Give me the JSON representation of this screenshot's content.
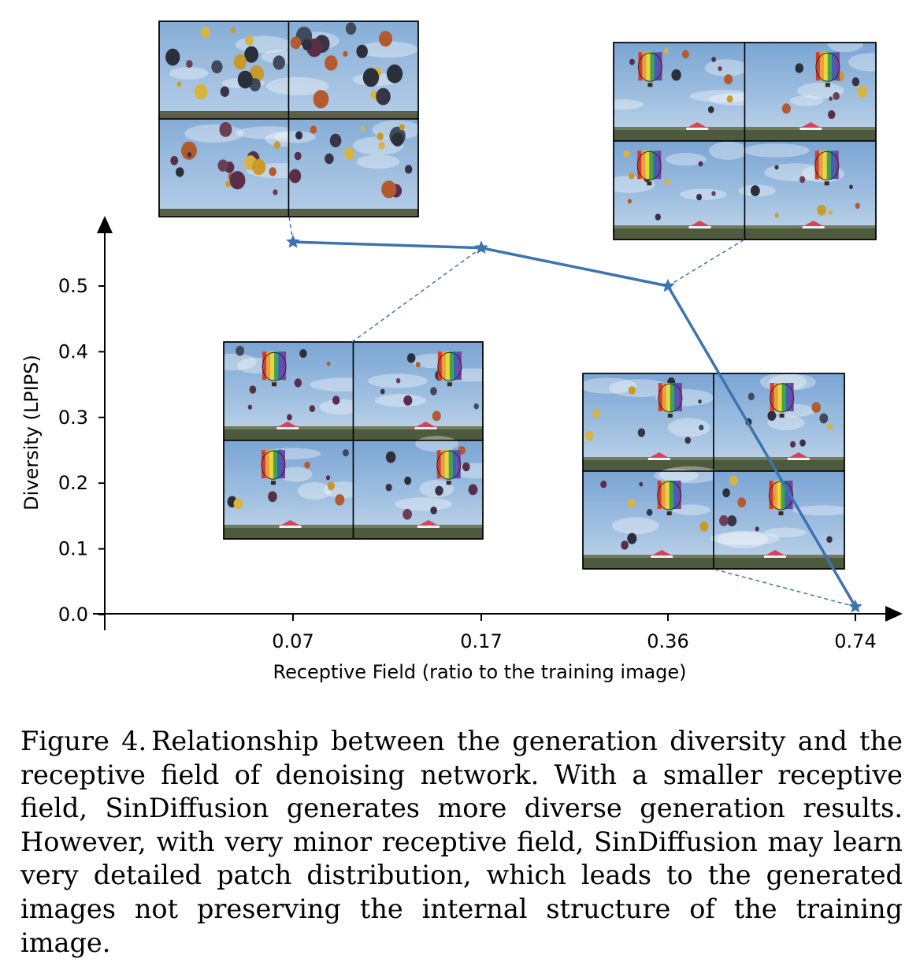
{
  "chart_data": {
    "type": "line",
    "title": "",
    "xlabel": "Receptive Field (ratio to the training image)",
    "ylabel": "Diversity (LPIPS)",
    "categories": [
      "0.07",
      "0.17",
      "0.36",
      "0.74"
    ],
    "series": [
      {
        "name": "SinDiffusion",
        "values": [
          0.567,
          0.558,
          0.5,
          0.012
        ],
        "marker": "star",
        "color": "#3d73b1"
      }
    ],
    "y_ticks": [
      0.0,
      0.1,
      0.2,
      0.3,
      0.4,
      0.5
    ],
    "y_tick_labels": [
      "0.0",
      "0.1",
      "0.2",
      "0.3",
      "0.4",
      "0.5"
    ],
    "ylim": [
      0.0,
      0.58
    ],
    "grid": false,
    "thumbnail_grids": [
      {
        "for_category": "0.07",
        "description": "2x2 generated balloon samples"
      },
      {
        "for_category": "0.17",
        "description": "2x2 generated balloon samples"
      },
      {
        "for_category": "0.36",
        "description": "2x2 generated balloon samples"
      },
      {
        "for_category": "0.74",
        "description": "2x2 generated balloon samples"
      }
    ]
  },
  "caption": {
    "label": "Figure 4.",
    "text": "Relationship between the generation diversity and the receptive field of denoising network. With a smaller receptive field, SinDiffusion generates more diverse generation results. However, with very minor receptive field, SinDiffusion may learn very detailed patch distribution, which leads to the generated images not preserving the internal structure of the training image."
  },
  "colors": {
    "line": "#3d73b1",
    "axis": "#000000"
  }
}
